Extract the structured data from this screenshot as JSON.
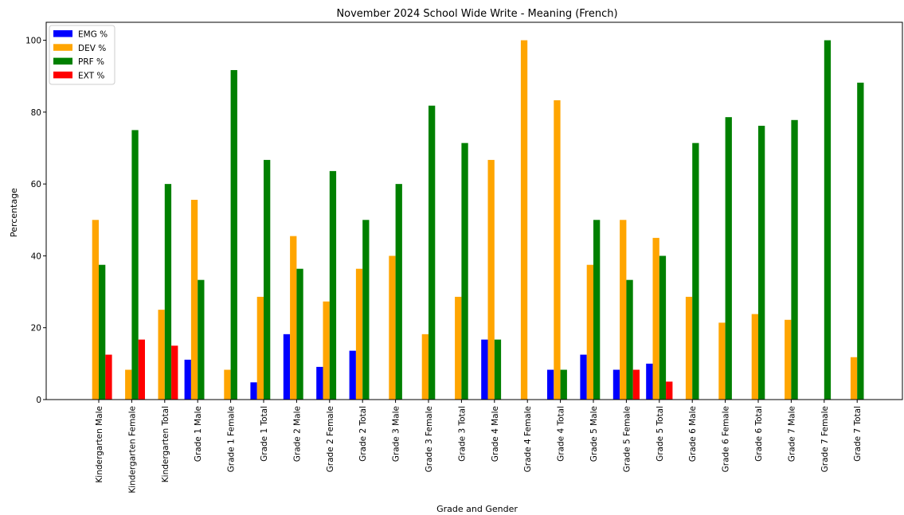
{
  "chart_data": {
    "type": "bar",
    "title": "November 2024 School Wide Write - Meaning (French)",
    "xlabel": "Grade and Gender",
    "ylabel": "Percentage",
    "ylim": [
      0,
      105
    ],
    "yticks": [
      0,
      20,
      40,
      60,
      80,
      100
    ],
    "legend_position": "top-left",
    "categories": [
      "Kindergarten Male",
      "Kindergarten Female",
      "Kindergarten Total",
      "Grade 1 Male",
      "Grade 1 Female",
      "Grade 1 Total",
      "Grade 2 Male",
      "Grade 2 Female",
      "Grade 2 Total",
      "Grade 3 Male",
      "Grade 3 Female",
      "Grade 3 Total",
      "Grade 4 Male",
      "Grade 4 Female",
      "Grade 4 Total",
      "Grade 5 Male",
      "Grade 5 Female",
      "Grade 5 Total",
      "Grade 6 Male",
      "Grade 6 Female",
      "Grade 6 Total",
      "Grade 7 Male",
      "Grade 7 Female",
      "Grade 7 Total"
    ],
    "series": [
      {
        "name": "EMG %",
        "color": "#0000ff",
        "values": [
          0,
          0,
          0,
          11.1,
          0,
          4.8,
          18.2,
          9.1,
          13.6,
          0,
          0,
          0,
          16.7,
          0,
          8.3,
          12.5,
          8.3,
          10.0,
          0,
          0,
          0,
          0,
          0,
          0
        ]
      },
      {
        "name": "DEV %",
        "color": "#ffa500",
        "values": [
          50.0,
          8.3,
          25.0,
          55.6,
          8.3,
          28.6,
          45.5,
          27.3,
          36.4,
          40.0,
          18.2,
          28.6,
          66.7,
          100.0,
          83.3,
          37.5,
          50.0,
          45.0,
          28.6,
          21.4,
          23.8,
          22.2,
          0,
          11.8
        ]
      },
      {
        "name": "PRF %",
        "color": "#008000",
        "values": [
          37.5,
          75.0,
          60.0,
          33.3,
          91.7,
          66.7,
          36.4,
          63.6,
          50.0,
          60.0,
          81.8,
          71.4,
          16.7,
          0,
          8.3,
          50.0,
          33.3,
          40.0,
          71.4,
          78.6,
          76.2,
          77.8,
          100.0,
          88.2
        ]
      },
      {
        "name": "EXT %",
        "color": "#ff0000",
        "values": [
          12.5,
          16.7,
          15.0,
          0,
          0,
          0,
          0,
          0,
          0,
          0,
          0,
          0,
          0,
          0,
          0,
          0,
          8.3,
          5.0,
          0,
          0,
          0,
          0,
          0,
          0
        ]
      }
    ]
  }
}
